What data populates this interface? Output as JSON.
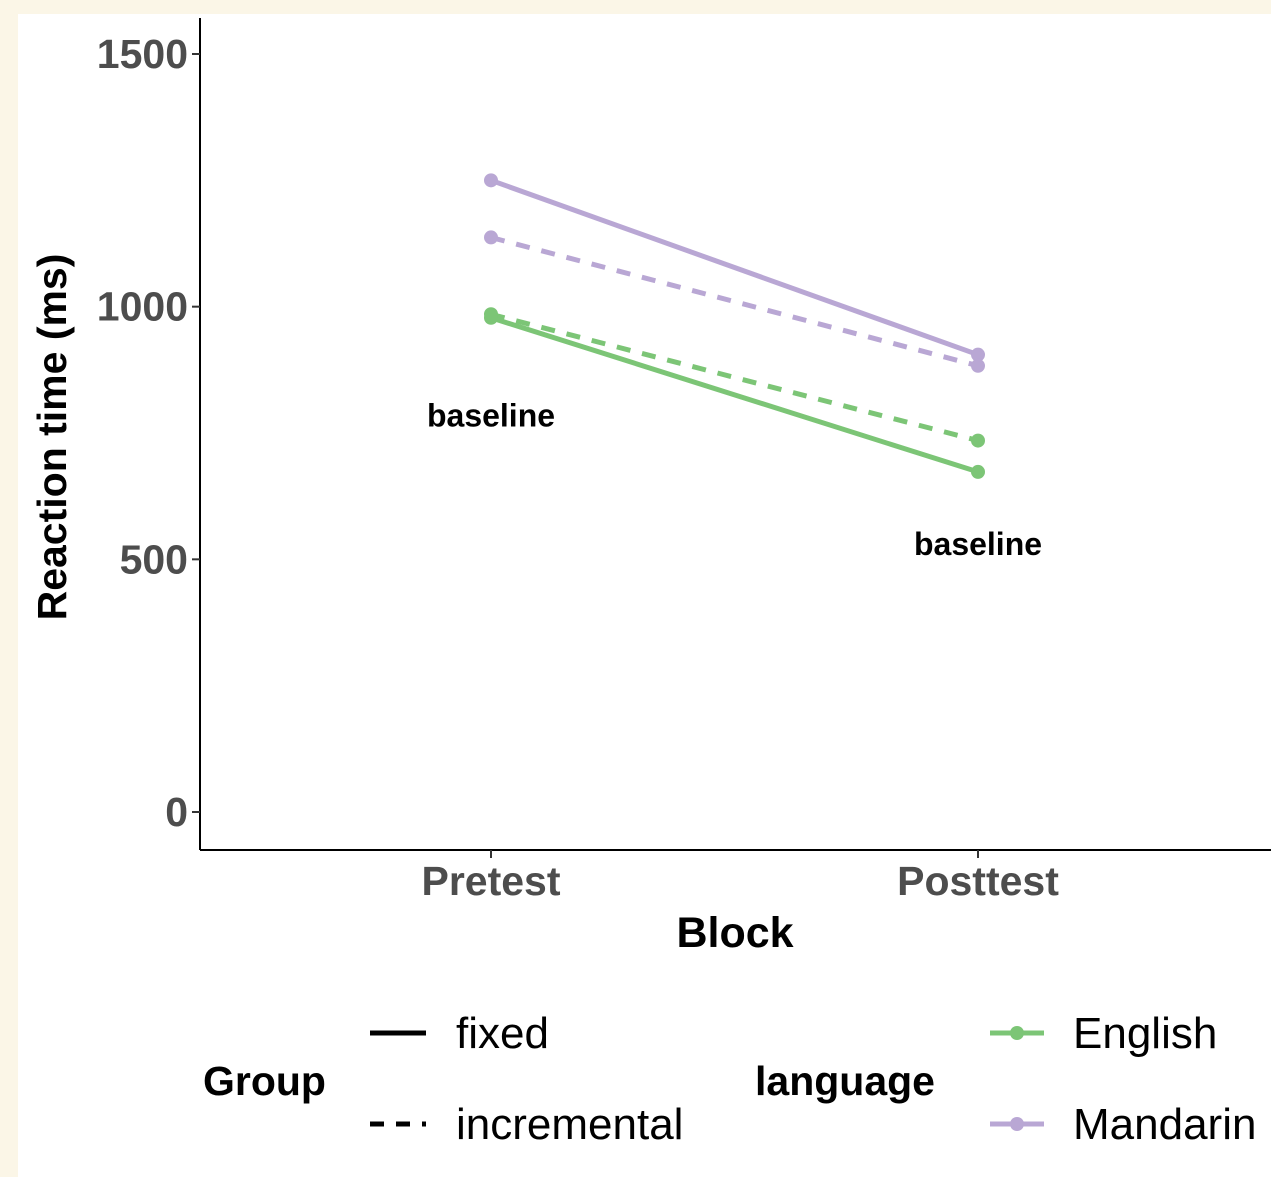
{
  "chart_data": {
    "type": "line",
    "x": [
      "Pretest",
      "Posttest"
    ],
    "xlabel": "Block",
    "ylabel": "Reaction time (ms)",
    "ylim": [
      -70,
      1590
    ],
    "yticks": [
      0,
      500,
      1000,
      1500
    ],
    "grid": false,
    "series": [
      {
        "group": "fixed",
        "language": "Mandarin",
        "values": [
          1250,
          905
        ],
        "color": "#b9a7d4",
        "dash": "solid"
      },
      {
        "group": "incremental",
        "language": "Mandarin",
        "values": [
          1137,
          883
        ],
        "color": "#b9a7d4",
        "dash": "dashed"
      },
      {
        "group": "fixed",
        "language": "English",
        "values": [
          978,
          673
        ],
        "color": "#7cc576",
        "dash": "solid"
      },
      {
        "group": "incremental",
        "language": "English",
        "values": [
          985,
          735
        ],
        "color": "#7cc576",
        "dash": "dashed"
      }
    ],
    "annotations": [
      {
        "text": "baseline",
        "x": "Pretest",
        "y": 785
      },
      {
        "text": "baseline",
        "x": "Posttest",
        "y": 530
      }
    ],
    "legend": {
      "placement": "bottom",
      "group": {
        "title": "Group",
        "items": [
          {
            "label": "fixed",
            "dash": "solid"
          },
          {
            "label": "incremental",
            "dash": "dashed"
          }
        ]
      },
      "language": {
        "title": "language",
        "items": [
          {
            "label": "English",
            "color": "#7cc576"
          },
          {
            "label": "Mandarin",
            "color": "#b9a7d4"
          }
        ]
      }
    }
  }
}
